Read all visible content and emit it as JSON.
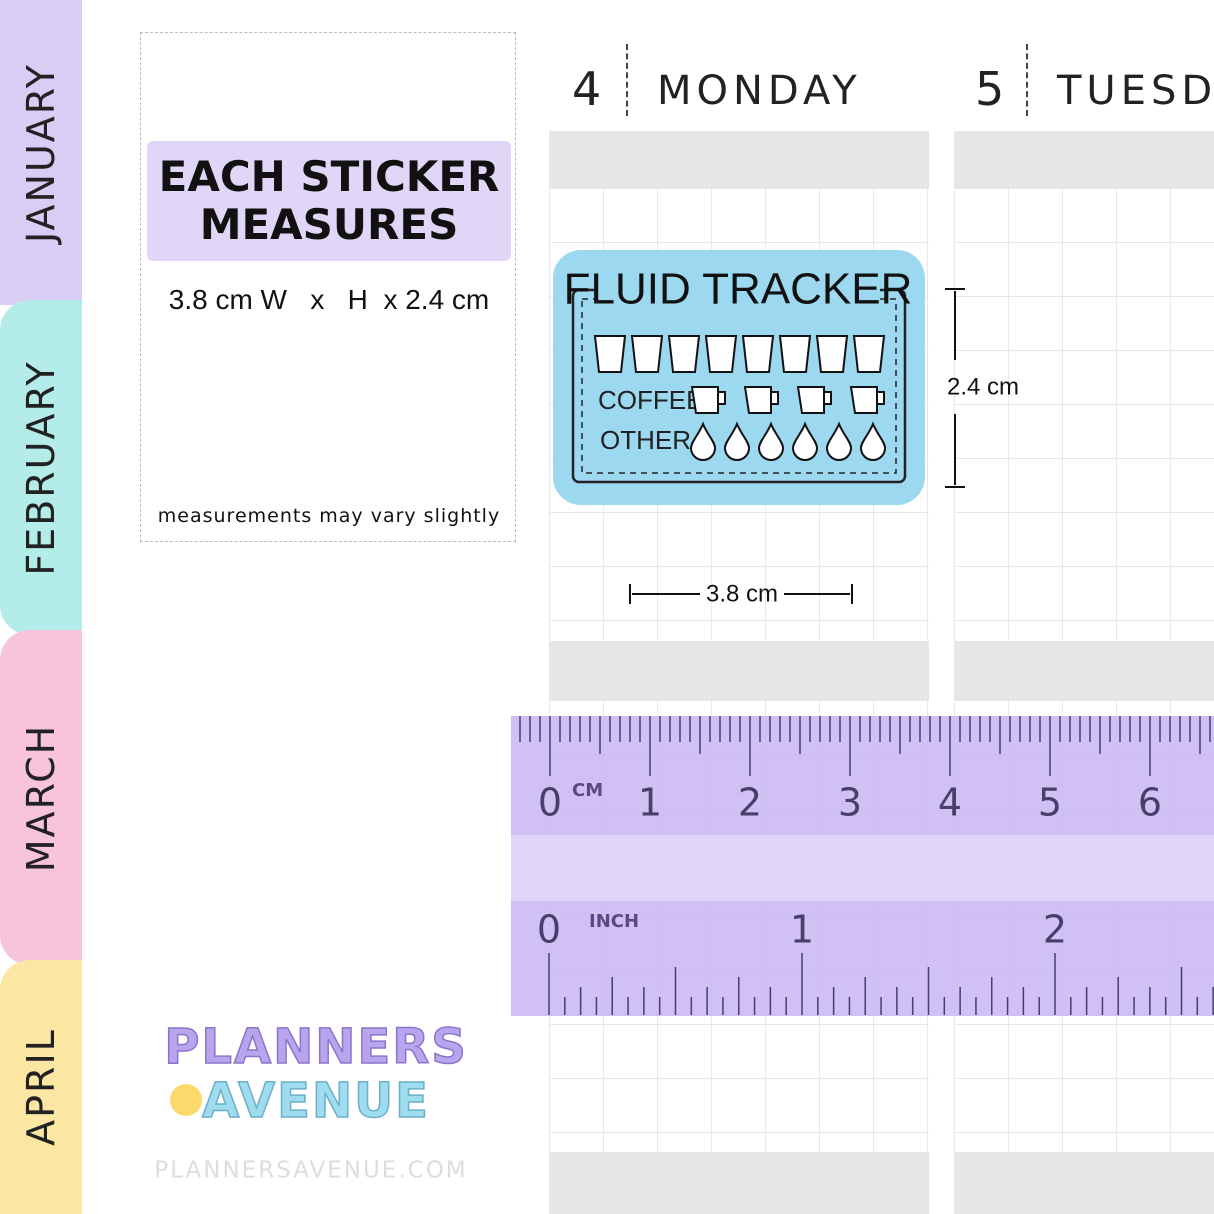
{
  "tabs": [
    "JANUARY",
    "FEBRUARY",
    "MARCH",
    "APRIL"
  ],
  "days": [
    {
      "number": "4",
      "name": "MONDAY"
    },
    {
      "number": "5",
      "name": "TUESD"
    }
  ],
  "info": {
    "title_line1": "EACH STICKER",
    "title_line2": "MEASURES",
    "size": "3.8 cm W   x   H  x 2.4 cm",
    "note": "measurements may vary slightly"
  },
  "sticker": {
    "title": "FLUID TRACKER",
    "row1": "COFFEE",
    "row2": "OTHER",
    "height_label": "2.4 cm",
    "width_label": "3.8 cm"
  },
  "ruler": {
    "cm_unit": "CM",
    "cm_labels": [
      "0",
      "1",
      "2",
      "3",
      "4",
      "5",
      "6"
    ],
    "inch_unit": "INCH",
    "inch_labels": [
      "0",
      "1",
      "2"
    ]
  },
  "logo": {
    "line1": "PLANNERS",
    "line2": "AVENUE",
    "url": "PLANNERSAVENUE.COM"
  }
}
